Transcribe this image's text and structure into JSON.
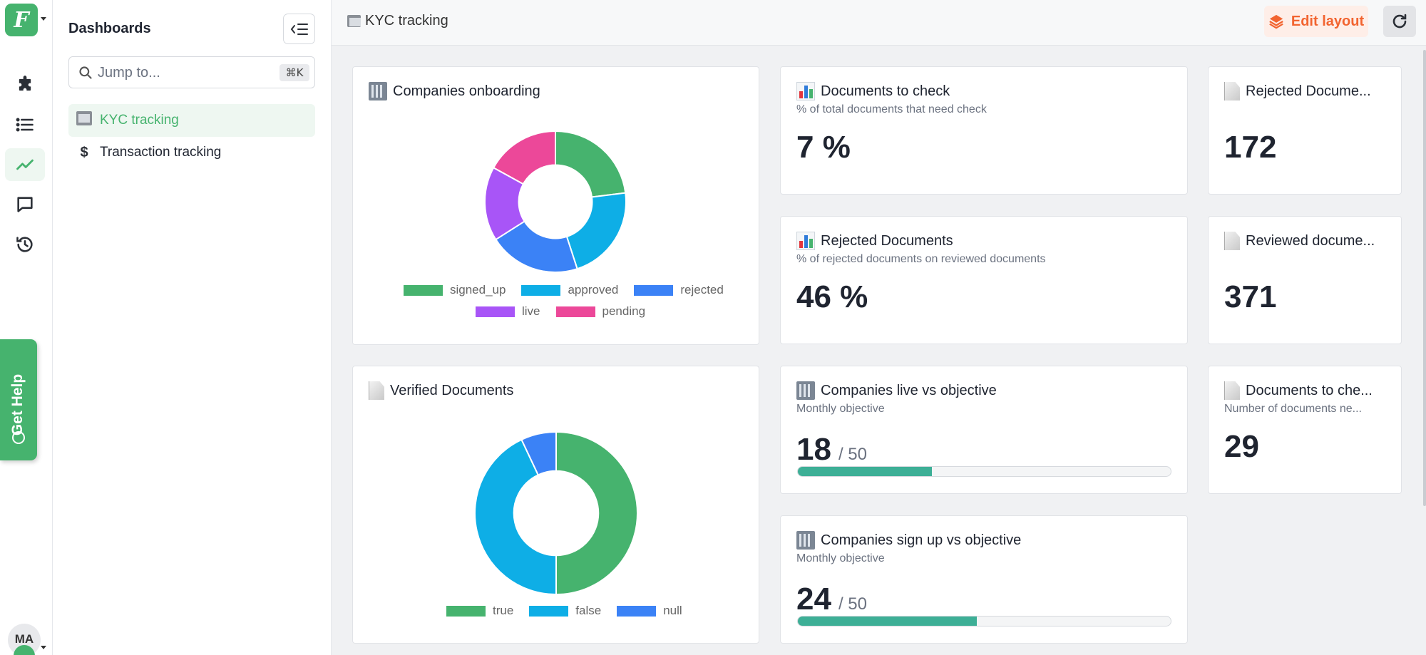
{
  "app": {
    "logo_letter": "F"
  },
  "rail": {
    "avatar_initials": "MA",
    "help_label": "Get Help"
  },
  "sidebar": {
    "title": "Dashboards",
    "search": {
      "placeholder": "Jump to...",
      "shortcut": "⌘K"
    },
    "items": [
      {
        "label": "KYC tracking",
        "icon": "cabinet-icon",
        "active": true
      },
      {
        "label": "Transaction tracking",
        "icon": "dollar-icon",
        "active": false
      }
    ]
  },
  "header": {
    "title": "KYC tracking",
    "edit_label": "Edit layout"
  },
  "colors": {
    "brand": "#46b36e",
    "accent": "#f26430",
    "progress": "#3daf96"
  },
  "cards": {
    "companies_onboarding": {
      "title": "Companies onboarding",
      "icon": "building-icon"
    },
    "documents_to_check": {
      "title": "Documents to check",
      "subtitle": "% of total documents that need check",
      "value": "7 %",
      "icon": "bar-chart-icon"
    },
    "rejected_count": {
      "title": "Rejected Docume...",
      "value": "172",
      "icon": "document-icon"
    },
    "rejected_documents": {
      "title": "Rejected Documents",
      "subtitle": "% of rejected documents on reviewed documents",
      "value": "46 %",
      "icon": "bar-chart-icon"
    },
    "reviewed": {
      "title": "Reviewed docume...",
      "value": "371",
      "icon": "document-icon"
    },
    "verified_documents": {
      "title": "Verified Documents",
      "icon": "document-icon"
    },
    "live_vs_objective": {
      "title": "Companies live vs objective",
      "subtitle": "Monthly objective",
      "value": "18",
      "target": "/ 50",
      "progress": 0.36,
      "icon": "building-icon"
    },
    "docs_to_check_count": {
      "title": "Documents to che...",
      "subtitle": "Number of documents ne...",
      "value": "29",
      "icon": "document-icon"
    },
    "signup_vs_objective": {
      "title": "Companies sign up vs objective",
      "subtitle": "Monthly objective",
      "value": "24",
      "target": "/ 50",
      "progress": 0.48,
      "icon": "building-icon"
    }
  },
  "chart_data": [
    {
      "type": "pie",
      "donut": true,
      "legend_position": "bottom",
      "categories": [
        "signed_up",
        "approved",
        "rejected",
        "live",
        "pending"
      ],
      "values": [
        23,
        22,
        21,
        17,
        17
      ],
      "colors": [
        "#46b36e",
        "#0eaee6",
        "#3b82f6",
        "#a855f7",
        "#ec4899"
      ]
    },
    {
      "type": "pie",
      "donut": true,
      "legend_position": "bottom",
      "categories": [
        "true",
        "false",
        "null"
      ],
      "values": [
        50,
        43,
        7
      ],
      "colors": [
        "#46b36e",
        "#0eaee6",
        "#3b82f6"
      ]
    }
  ]
}
